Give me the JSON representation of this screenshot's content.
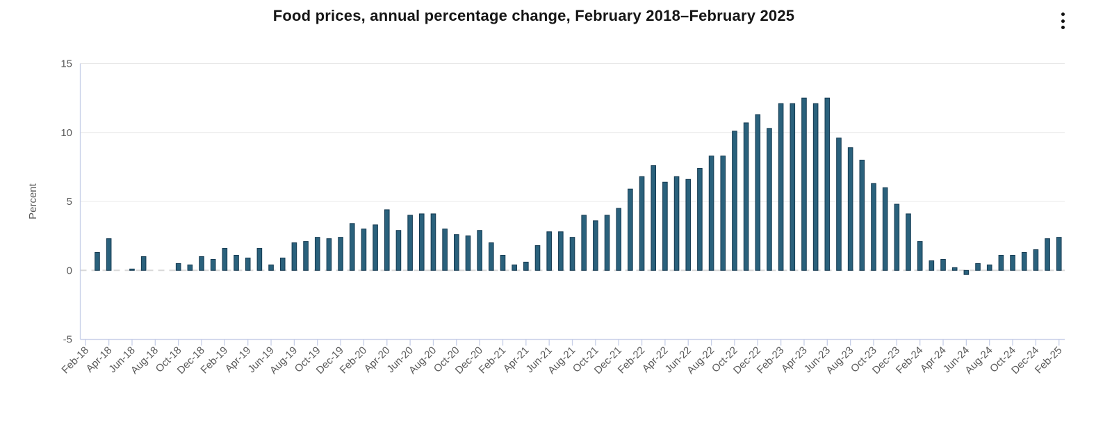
{
  "header": {
    "title": "Food prices, annual percentage change, February 2018–February 2025",
    "menu_icon": "kebab-menu-icon"
  },
  "chart_data": {
    "type": "bar",
    "title": "Food prices, annual percentage change, February 2018–February 2025",
    "xlabel": "",
    "ylabel": "Percent",
    "ylim": [
      -5,
      15
    ],
    "yticks": [
      15,
      10,
      5,
      0,
      -5
    ],
    "grid": "horizontal",
    "legend": "none",
    "xtick_every": 2,
    "categories": [
      "Feb-18",
      "Mar-18",
      "Apr-18",
      "May-18",
      "Jun-18",
      "Jul-18",
      "Aug-18",
      "Sep-18",
      "Oct-18",
      "Nov-18",
      "Dec-18",
      "Jan-19",
      "Feb-19",
      "Mar-19",
      "Apr-19",
      "May-19",
      "Jun-19",
      "Jul-19",
      "Aug-19",
      "Sep-19",
      "Oct-19",
      "Nov-19",
      "Dec-19",
      "Jan-20",
      "Feb-20",
      "Mar-20",
      "Apr-20",
      "May-20",
      "Jun-20",
      "Jul-20",
      "Aug-20",
      "Sep-20",
      "Oct-20",
      "Nov-20",
      "Dec-20",
      "Jan-21",
      "Feb-21",
      "Mar-21",
      "Apr-21",
      "May-21",
      "Jun-21",
      "Jul-21",
      "Aug-21",
      "Sep-21",
      "Oct-21",
      "Nov-21",
      "Dec-21",
      "Jan-22",
      "Feb-22",
      "Mar-22",
      "Apr-22",
      "May-22",
      "Jun-22",
      "Jul-22",
      "Aug-22",
      "Sep-22",
      "Oct-22",
      "Nov-22",
      "Dec-22",
      "Jan-23",
      "Feb-23",
      "Mar-23",
      "Apr-23",
      "May-23",
      "Jun-23",
      "Jul-23",
      "Aug-23",
      "Sep-23",
      "Oct-23",
      "Nov-23",
      "Dec-23",
      "Jan-24",
      "Feb-24",
      "Mar-24",
      "Apr-24",
      "May-24",
      "Jun-24",
      "Jul-24",
      "Aug-24",
      "Sep-24",
      "Oct-24",
      "Nov-24",
      "Dec-24",
      "Jan-25",
      "Feb-25"
    ],
    "values": [
      0.0,
      1.3,
      2.3,
      0.0,
      0.1,
      1.0,
      0.0,
      0.0,
      0.5,
      0.4,
      1.0,
      0.8,
      1.6,
      1.1,
      0.9,
      1.6,
      0.4,
      0.9,
      2.0,
      2.1,
      2.4,
      2.3,
      2.4,
      3.4,
      3.0,
      3.3,
      4.4,
      2.9,
      4.0,
      4.1,
      4.1,
      3.0,
      2.6,
      2.5,
      2.9,
      2.0,
      1.1,
      0.4,
      0.6,
      1.8,
      2.8,
      2.8,
      2.4,
      4.0,
      3.6,
      4.0,
      4.5,
      5.9,
      6.8,
      7.6,
      6.4,
      6.8,
      6.6,
      7.4,
      8.3,
      8.3,
      10.1,
      10.7,
      11.3,
      10.3,
      12.1,
      12.1,
      12.5,
      12.1,
      12.5,
      9.6,
      8.9,
      8.0,
      6.3,
      6.0,
      4.8,
      4.1,
      2.1,
      0.7,
      0.8,
      0.2,
      -0.3,
      0.5,
      0.4,
      1.1,
      1.1,
      1.3,
      1.5,
      2.3,
      2.4
    ],
    "colors": {
      "bar_fill": "#2a617c",
      "bar_stroke": "#153a51",
      "grid_line": "#e8e8e8",
      "zero_line": "#d8d8d8",
      "axis_line": "#c7cfe8",
      "tick_label": "#5a5a5a",
      "title_text": "#161616"
    }
  }
}
